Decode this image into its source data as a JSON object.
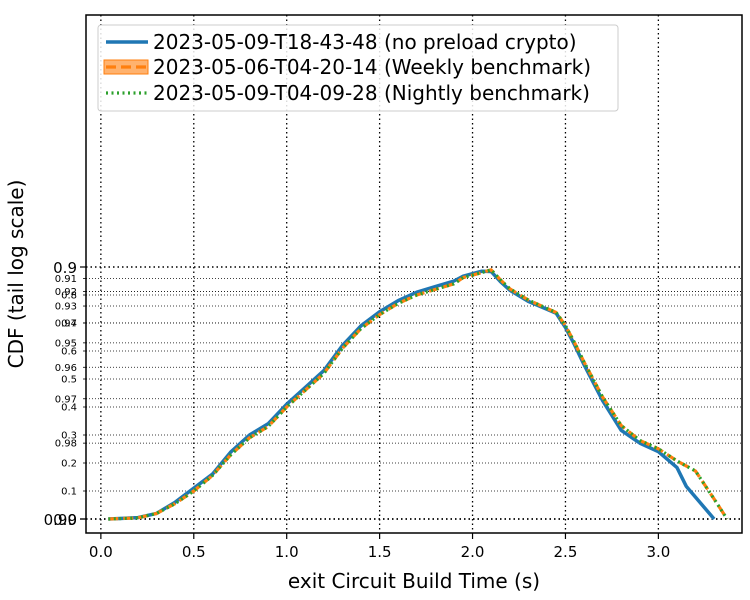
{
  "chart_data": {
    "type": "line",
    "xlabel": "exit Circuit Build Time (s)",
    "ylabel": "CDF (tail log scale)",
    "xlim": [
      -0.08,
      3.45
    ],
    "x_ticks": [
      {
        "value": 0.0,
        "label": "0.0"
      },
      {
        "value": 0.5,
        "label": "0.5"
      },
      {
        "value": 1.0,
        "label": "1.0"
      },
      {
        "value": 1.5,
        "label": "1.5"
      },
      {
        "value": 2.0,
        "label": "2.0"
      },
      {
        "value": 2.5,
        "label": "2.5"
      },
      {
        "value": 3.0,
        "label": "3.0"
      }
    ],
    "y_scale": "tail-log (linear 0 to 0.9, logarithmic tail 0.9 to 0.99)",
    "y_major_ticks": [
      {
        "value": 0.0,
        "label": "0.0"
      },
      {
        "value": 0.9,
        "label": "0.9"
      },
      {
        "value": 0.99,
        "label": "0.99"
      }
    ],
    "y_minor_ticks": [
      {
        "value": 0.1,
        "label": "0.1"
      },
      {
        "value": 0.2,
        "label": "0.2"
      },
      {
        "value": 0.3,
        "label": "0.3"
      },
      {
        "value": 0.4,
        "label": "0.4"
      },
      {
        "value": 0.5,
        "label": "0.5"
      },
      {
        "value": 0.6,
        "label": "0.6"
      },
      {
        "value": 0.7,
        "label": "0.7"
      },
      {
        "value": 0.8,
        "label": "0.8"
      },
      {
        "value": 0.91,
        "label": "0.91"
      },
      {
        "value": 0.92,
        "label": "0.92"
      },
      {
        "value": 0.93,
        "label": "0.93"
      },
      {
        "value": 0.94,
        "label": "0.94"
      },
      {
        "value": 0.95,
        "label": "0.95"
      },
      {
        "value": 0.96,
        "label": "0.96"
      },
      {
        "value": 0.97,
        "label": "0.97"
      },
      {
        "value": 0.98,
        "label": "0.98"
      }
    ],
    "grid": true,
    "legend_position": "top-left",
    "series": [
      {
        "name": "2023-05-09-T18-43-48 (no preload crypto)",
        "color": "#1f77b4",
        "style": "solid",
        "points": [
          [
            0.04,
            0.0
          ],
          [
            0.2,
            0.005
          ],
          [
            0.3,
            0.02
          ],
          [
            0.4,
            0.06
          ],
          [
            0.5,
            0.11
          ],
          [
            0.6,
            0.16
          ],
          [
            0.7,
            0.24
          ],
          [
            0.8,
            0.3
          ],
          [
            0.9,
            0.34
          ],
          [
            1.0,
            0.41
          ],
          [
            1.1,
            0.47
          ],
          [
            1.2,
            0.53
          ],
          [
            1.3,
            0.62
          ],
          [
            1.4,
            0.69
          ],
          [
            1.5,
            0.74
          ],
          [
            1.6,
            0.78
          ],
          [
            1.7,
            0.81
          ],
          [
            1.8,
            0.83
          ],
          [
            1.9,
            0.85
          ],
          [
            1.95,
            0.867
          ],
          [
            2.05,
            0.885
          ],
          [
            2.1,
            0.904
          ],
          [
            2.15,
            0.9125
          ],
          [
            2.2,
            0.919
          ],
          [
            2.3,
            0.927
          ],
          [
            2.4,
            0.932
          ],
          [
            2.45,
            0.9345
          ],
          [
            2.5,
            0.9425
          ],
          [
            2.55,
            0.951
          ],
          [
            2.6,
            0.959
          ],
          [
            2.7,
            0.9705
          ],
          [
            2.8,
            0.9775
          ],
          [
            2.9,
            0.98
          ],
          [
            3.0,
            0.9815
          ],
          [
            3.1,
            0.984
          ],
          [
            3.15,
            0.9865
          ],
          [
            3.3,
            0.99
          ]
        ]
      },
      {
        "name": "2023-05-06-T04-20-14 (Weekly benchmark)",
        "color": "#ff7f0e",
        "style": "dashed",
        "points": [
          [
            0.04,
            0.0
          ],
          [
            0.2,
            0.004
          ],
          [
            0.3,
            0.02
          ],
          [
            0.4,
            0.055
          ],
          [
            0.5,
            0.1
          ],
          [
            0.6,
            0.155
          ],
          [
            0.7,
            0.23
          ],
          [
            0.8,
            0.29
          ],
          [
            0.9,
            0.33
          ],
          [
            1.0,
            0.4
          ],
          [
            1.1,
            0.46
          ],
          [
            1.2,
            0.52
          ],
          [
            1.3,
            0.61
          ],
          [
            1.4,
            0.68
          ],
          [
            1.5,
            0.73
          ],
          [
            1.6,
            0.77
          ],
          [
            1.7,
            0.8
          ],
          [
            1.8,
            0.82
          ],
          [
            1.9,
            0.84
          ],
          [
            1.95,
            0.862
          ],
          [
            2.05,
            0.88
          ],
          [
            2.1,
            0.9025
          ],
          [
            2.15,
            0.911
          ],
          [
            2.2,
            0.918
          ],
          [
            2.3,
            0.926
          ],
          [
            2.4,
            0.9315
          ],
          [
            2.45,
            0.934
          ],
          [
            2.5,
            0.9415
          ],
          [
            2.55,
            0.95
          ],
          [
            2.6,
            0.958
          ],
          [
            2.7,
            0.9695
          ],
          [
            2.8,
            0.9765
          ],
          [
            2.9,
            0.9795
          ],
          [
            3.0,
            0.981
          ],
          [
            3.1,
            0.983
          ],
          [
            3.2,
            0.9845
          ],
          [
            3.3,
            0.988
          ],
          [
            3.37,
            0.99
          ]
        ]
      },
      {
        "name": "2023-05-09-T04-09-28 (Nightly benchmark)",
        "color": "#2ca02c",
        "style": "dotted",
        "points": [
          [
            0.04,
            0.0
          ],
          [
            0.2,
            0.004
          ],
          [
            0.3,
            0.02
          ],
          [
            0.4,
            0.055
          ],
          [
            0.5,
            0.1
          ],
          [
            0.6,
            0.155
          ],
          [
            0.7,
            0.23
          ],
          [
            0.8,
            0.29
          ],
          [
            0.9,
            0.33
          ],
          [
            1.0,
            0.4
          ],
          [
            1.1,
            0.46
          ],
          [
            1.2,
            0.52
          ],
          [
            1.3,
            0.61
          ],
          [
            1.4,
            0.68
          ],
          [
            1.5,
            0.73
          ],
          [
            1.6,
            0.77
          ],
          [
            1.7,
            0.8
          ],
          [
            1.8,
            0.82
          ],
          [
            1.9,
            0.84
          ],
          [
            1.95,
            0.862
          ],
          [
            2.05,
            0.88
          ],
          [
            2.1,
            0.9025
          ],
          [
            2.15,
            0.911
          ],
          [
            2.2,
            0.918
          ],
          [
            2.3,
            0.926
          ],
          [
            2.4,
            0.9315
          ],
          [
            2.45,
            0.934
          ],
          [
            2.5,
            0.9415
          ],
          [
            2.55,
            0.95
          ],
          [
            2.6,
            0.958
          ],
          [
            2.7,
            0.9695
          ],
          [
            2.8,
            0.9765
          ],
          [
            2.9,
            0.9795
          ],
          [
            3.0,
            0.981
          ],
          [
            3.1,
            0.983
          ],
          [
            3.2,
            0.9845
          ],
          [
            3.3,
            0.988
          ],
          [
            3.37,
            0.99
          ]
        ]
      }
    ]
  }
}
